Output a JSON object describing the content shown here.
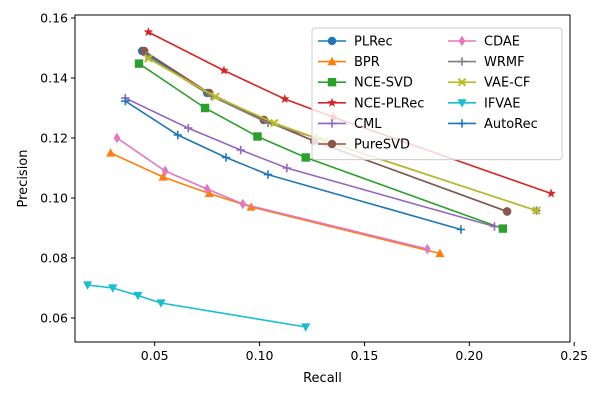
{
  "chart_data": {
    "type": "line",
    "xlabel": "Recall",
    "ylabel": "Precision",
    "xlim": [
      0.012,
      0.248
    ],
    "ylim": [
      0.052,
      0.161
    ],
    "xticks": [
      0.05,
      0.1,
      0.15,
      0.2,
      0.25
    ],
    "xtick_labels": [
      "0.05",
      "0.10",
      "0.15",
      "0.20",
      "0.25"
    ],
    "yticks": [
      0.06,
      0.08,
      0.1,
      0.12,
      0.14,
      0.16
    ],
    "ytick_labels": [
      "0.06",
      "0.08",
      "0.10",
      "0.12",
      "0.14",
      "0.16"
    ],
    "grid": false,
    "legend_position": "top-right",
    "legend_columns": 2,
    "series": [
      {
        "name": "PLRec",
        "color": "#1f77b4",
        "marker": "circle",
        "x": [
          0.044,
          0.075,
          0.102,
          0.126,
          0.218
        ],
        "y": [
          0.149,
          0.135,
          0.126,
          0.119,
          0.0955
        ]
      },
      {
        "name": "BPR",
        "color": "#ff7f0e",
        "marker": "triangle-up",
        "x": [
          0.029,
          0.054,
          0.076,
          0.096,
          0.186
        ],
        "y": [
          0.115,
          0.107,
          0.1015,
          0.097,
          0.0815
        ]
      },
      {
        "name": "NCE-SVD",
        "color": "#2ca02c",
        "marker": "square",
        "x": [
          0.0425,
          0.074,
          0.099,
          0.122,
          0.216
        ],
        "y": [
          0.1448,
          0.13,
          0.1205,
          0.1135,
          0.0898
        ]
      },
      {
        "name": "NCE-PLRec",
        "color": "#d62728",
        "marker": "star",
        "x": [
          0.047,
          0.083,
          0.112,
          0.135,
          0.239
        ],
        "y": [
          0.1553,
          0.1425,
          0.133,
          0.127,
          0.1015
        ]
      },
      {
        "name": "CML",
        "color": "#9467bd",
        "marker": "plus",
        "x": [
          0.036,
          0.066,
          0.091,
          0.113,
          0.212
        ],
        "y": [
          0.1333,
          0.1233,
          0.116,
          0.11,
          0.0905
        ]
      },
      {
        "name": "PureSVD",
        "color": "#8c564b",
        "marker": "circle",
        "x": [
          0.045,
          0.076,
          0.102,
          0.126,
          0.218
        ],
        "y": [
          0.149,
          0.135,
          0.126,
          0.119,
          0.0955
        ]
      },
      {
        "name": "CDAE",
        "color": "#e377c2",
        "marker": "thin-diamond",
        "x": [
          0.032,
          0.055,
          0.075,
          0.092,
          0.18
        ],
        "y": [
          0.12,
          0.109,
          0.103,
          0.098,
          0.083
        ]
      },
      {
        "name": "WRMF",
        "color": "#7f7f7f",
        "marker": "plus",
        "x": [
          0.046,
          0.077,
          0.104,
          0.127,
          0.232
        ],
        "y": [
          0.1475,
          0.134,
          0.125,
          0.12,
          0.0958
        ]
      },
      {
        "name": "VAE-CF",
        "color": "#bcbd22",
        "marker": "x-filled",
        "x": [
          0.047,
          0.079,
          0.107,
          0.131,
          0.232
        ],
        "y": [
          0.1465,
          0.1338,
          0.125,
          0.119,
          0.0958
        ]
      },
      {
        "name": "IFVAE",
        "color": "#17becf",
        "marker": "triangle-down",
        "x": [
          0.018,
          0.03,
          0.042,
          0.053,
          0.122
        ],
        "y": [
          0.071,
          0.07,
          0.0675,
          0.065,
          0.057
        ]
      },
      {
        "name": "AutoRec",
        "color": "#1f77b4",
        "marker": "plus",
        "x": [
          0.036,
          0.061,
          0.084,
          0.104,
          0.196
        ],
        "y": [
          0.1323,
          0.121,
          0.1135,
          0.1078,
          0.0895
        ]
      }
    ]
  }
}
